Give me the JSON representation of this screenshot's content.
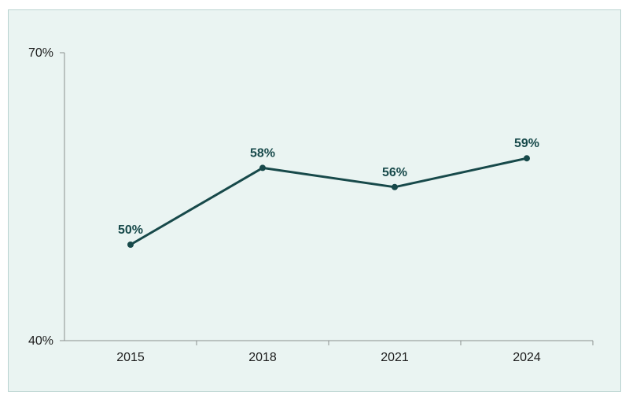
{
  "colors": {
    "background": "#eaf4f2",
    "border": "#b9d3d0",
    "line": "#17494a",
    "axis": "#8a8f8e",
    "text": "#1d1d1d"
  },
  "chart_data": {
    "type": "line",
    "title": "",
    "xlabel": "",
    "ylabel": "",
    "categories": [
      "2015",
      "2018",
      "2021",
      "2024"
    ],
    "series": [
      {
        "values": [
          50,
          58,
          56,
          59
        ],
        "labels": [
          "50%",
          "58%",
          "56%",
          "59%"
        ]
      }
    ],
    "ylim": [
      40,
      70
    ],
    "y_ticks": [
      {
        "value": 70,
        "label": "70%"
      },
      {
        "value": 40,
        "label": "40%"
      }
    ],
    "grid": false,
    "legend": "none"
  }
}
